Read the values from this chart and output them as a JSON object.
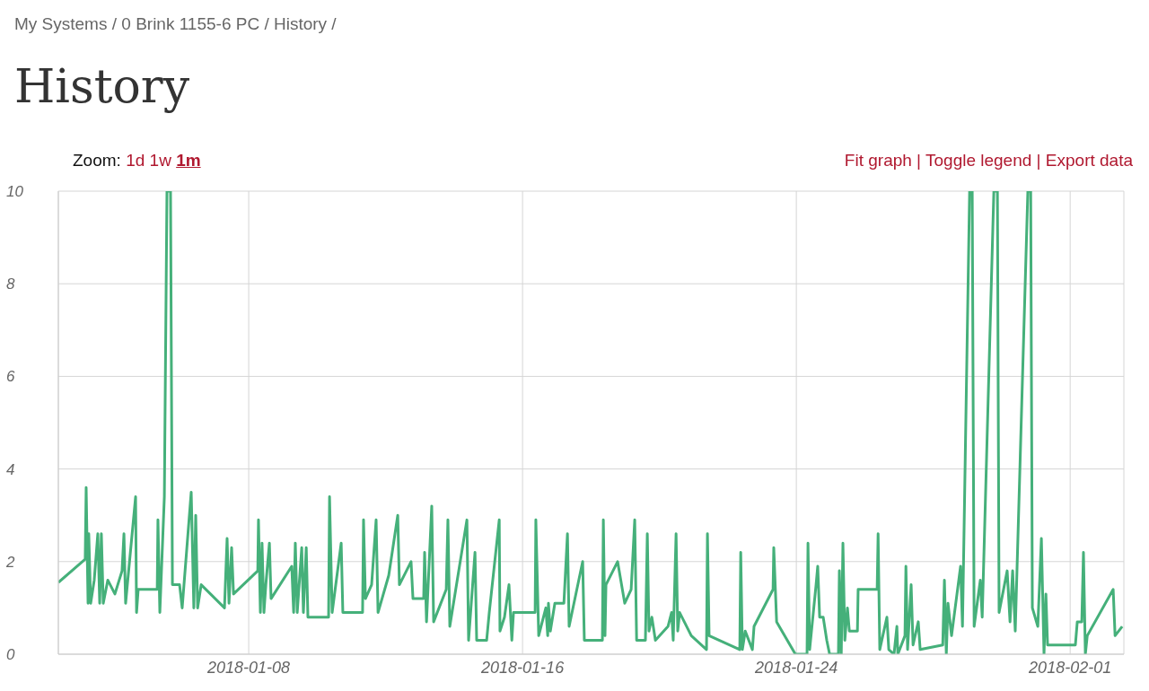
{
  "chart_data": {
    "type": "line",
    "title": "History",
    "annotations": [
      "My Systems / 0 Brink 1155-6 PC / History /",
      "Zoom:",
      "1d",
      "1w",
      "1m",
      "Fit graph |",
      "Toggle legend |",
      "Export data"
    ],
    "xlim": [
      "2018-01-02T10:30",
      "2018-02-02T13:40"
    ],
    "xticks": [
      "2018-01-08",
      "2018-01-16",
      "2018-01-24",
      "2018-02-01"
    ],
    "ylim": [
      0,
      10
    ],
    "yticks": [
      0,
      2,
      4,
      6,
      8,
      10
    ],
    "grid": true,
    "marker": "none",
    "line_style": "solid",
    "x": [
      "2018-01-02T10:30",
      "2018-01-03T05:20",
      "2018-01-03T06:00",
      "2018-01-03T07:20",
      "2018-01-03T07:50",
      "2018-01-03T09:10",
      "2018-01-03T11:40",
      "2018-01-03T14:10",
      "2018-01-03T15:30",
      "2018-01-03T16:40",
      "2018-01-03T18:00",
      "2018-01-03T21:10",
      "2018-01-04T02:10",
      "2018-01-04T07:10",
      "2018-01-04T08:30",
      "2018-01-04T09:40",
      "2018-01-04T16:40",
      "2018-01-04T17:20",
      "2018-01-04T18:30",
      "2018-01-05T07:50",
      "2018-01-05T08:20",
      "2018-01-05T09:40",
      "2018-01-05T12:50",
      "2018-01-05T14:40",
      "2018-01-05T17:10",
      "2018-01-05T18:30",
      "2018-01-05T23:30",
      "2018-01-06T01:20",
      "2018-01-06T07:40",
      "2018-01-06T09:30",
      "2018-01-06T10:50",
      "2018-01-06T12:10",
      "2018-01-06T14:40",
      "2018-01-07T07:00",
      "2018-01-07T08:50",
      "2018-01-07T10:10",
      "2018-01-07T12:00",
      "2018-01-07T13:20",
      "2018-01-08T06:20",
      "2018-01-08T06:50",
      "2018-01-08T08:10",
      "2018-01-08T09:20",
      "2018-01-08T10:40",
      "2018-01-08T12:00",
      "2018-01-08T14:30",
      "2018-01-08T15:40",
      "2018-01-09T06:10",
      "2018-01-09T07:30",
      "2018-01-09T08:40",
      "2018-01-09T10:00",
      "2018-01-09T13:10",
      "2018-01-09T14:20",
      "2018-01-09T16:20",
      "2018-01-09T17:30",
      "2018-01-10T08:00",
      "2018-01-10T08:40",
      "2018-01-10T10:30",
      "2018-01-10T16:50",
      "2018-01-10T18:00",
      "2018-01-11T07:50",
      "2018-01-11T08:30",
      "2018-01-11T09:50",
      "2018-01-11T14:10",
      "2018-01-11T17:20",
      "2018-01-11T18:40",
      "2018-01-12T02:10",
      "2018-01-12T08:30",
      "2018-01-12T09:40",
      "2018-01-12T17:50",
      "2018-01-12T19:10",
      "2018-01-13T02:40",
      "2018-01-13T03:20",
      "2018-01-13T04:40",
      "2018-01-13T08:20",
      "2018-01-13T09:40",
      "2018-01-13T18:30",
      "2018-01-13T19:40",
      "2018-01-13T21:00",
      "2018-01-14T09:00",
      "2018-01-14T10:10",
      "2018-01-14T14:40",
      "2018-01-14T15:50",
      "2018-01-14T22:50",
      "2018-01-15T00:40",
      "2018-01-15T07:40",
      "2018-01-15T08:10",
      "2018-01-15T11:20",
      "2018-01-15T14:30",
      "2018-01-15T16:30",
      "2018-01-15T17:40",
      "2018-01-16T08:50",
      "2018-01-16T09:20",
      "2018-01-16T11:20",
      "2018-01-16T16:20",
      "2018-01-16T17:40",
      "2018-01-16T18:10",
      "2018-01-16T19:30",
      "2018-01-16T22:40",
      "2018-01-17T05:00",
      "2018-01-17T07:30",
      "2018-01-17T08:40",
      "2018-01-17T18:10",
      "2018-01-17T19:20",
      "2018-01-18T08:00",
      "2018-01-18T08:40",
      "2018-01-18T09:50",
      "2018-01-18T10:30",
      "2018-01-18T18:40",
      "2018-01-18T23:40",
      "2018-01-19T04:10",
      "2018-01-19T06:40",
      "2018-01-19T08:00",
      "2018-01-19T14:10",
      "2018-01-19T15:30",
      "2018-01-19T16:40",
      "2018-01-19T18:40",
      "2018-01-19T21:10",
      "2018-01-20T06:00",
      "2018-01-20T08:30",
      "2018-01-20T09:40",
      "2018-01-20T11:40",
      "2018-01-20T12:50",
      "2018-01-20T14:10",
      "2018-01-20T22:20",
      "2018-01-21T09:00",
      "2018-01-21T09:40",
      "2018-01-21T10:50",
      "2018-01-22T08:20",
      "2018-01-22T09:00",
      "2018-01-22T10:10",
      "2018-01-22T12:10",
      "2018-01-22T17:10",
      "2018-01-22T18:20",
      "2018-01-23T07:40",
      "2018-01-23T08:10",
      "2018-01-23T10:10",
      "2018-01-23T23:20",
      "2018-01-24T07:30",
      "2018-01-24T08:10",
      "2018-01-24T09:20",
      "2018-01-24T13:50",
      "2018-01-24T15:00",
      "2018-01-24T16:20",
      "2018-01-24T18:50",
      "2018-01-24T21:20",
      "2018-01-24T23:20",
      "2018-01-25T05:30",
      "2018-01-25T06:10",
      "2018-01-25T07:30",
      "2018-01-25T08:40",
      "2018-01-25T10:00",
      "2018-01-25T11:50",
      "2018-01-25T13:10",
      "2018-01-25T18:50",
      "2018-01-25T19:20",
      "2018-01-26T08:40",
      "2018-01-26T09:20",
      "2018-01-26T10:30",
      "2018-01-26T15:30",
      "2018-01-26T16:50",
      "2018-01-26T20:30",
      "2018-01-26T22:30",
      "2018-01-26T23:10",
      "2018-01-27T04:10",
      "2018-01-27T04:50",
      "2018-01-27T06:00",
      "2018-01-27T08:30",
      "2018-01-27T09:50",
      "2018-01-27T13:30",
      "2018-01-27T14:50",
      "2018-01-28T06:40",
      "2018-01-28T07:50",
      "2018-01-28T09:10",
      "2018-01-28T10:20",
      "2018-01-28T12:50",
      "2018-01-28T19:10",
      "2018-01-28T20:30",
      "2018-01-29T01:30",
      "2018-01-29T03:20",
      "2018-01-29T04:40",
      "2018-01-29T09:00",
      "2018-01-29T10:20",
      "2018-01-29T18:30",
      "2018-01-29T21:00",
      "2018-01-29T22:10",
      "2018-01-30T03:50",
      "2018-01-30T05:50",
      "2018-01-30T07:40",
      "2018-01-30T09:30",
      "2018-01-30T18:20",
      "2018-01-30T20:20",
      "2018-01-30T21:30",
      "2018-01-31T01:20",
      "2018-01-31T03:50",
      "2018-01-31T05:40",
      "2018-01-31T07:00",
      "2018-01-31T08:10",
      "2018-02-01T03:40",
      "2018-02-01T05:00",
      "2018-02-01T08:10",
      "2018-02-01T09:20",
      "2018-02-01T10:40",
      "2018-02-01T12:00",
      "2018-02-02T06:10",
      "2018-02-02T07:30",
      "2018-02-02T12:30"
    ],
    "series": [
      {
        "color": "#45b07a",
        "values": [
          1.55,
          2.05,
          3.6,
          1.1,
          2.6,
          1.1,
          1.6,
          2.6,
          1.1,
          2.6,
          1.1,
          1.6,
          1.3,
          1.8,
          2.6,
          1.1,
          3.4,
          0.9,
          1.4,
          1.4,
          2.9,
          0.9,
          3.4,
          10,
          10,
          1.5,
          1.5,
          1.0,
          3.5,
          1.0,
          3.0,
          1.0,
          1.5,
          1.0,
          2.5,
          1.1,
          2.3,
          1.3,
          1.8,
          2.9,
          0.9,
          2.4,
          0.9,
          1.5,
          2.4,
          1.2,
          1.9,
          0.9,
          2.4,
          0.9,
          2.3,
          0.9,
          2.3,
          0.8,
          0.8,
          3.4,
          0.9,
          2.4,
          0.9,
          0.9,
          2.9,
          1.2,
          1.5,
          2.9,
          0.9,
          1.7,
          3.0,
          1.5,
          2.0,
          1.2,
          1.2,
          2.2,
          0.7,
          3.2,
          0.7,
          1.4,
          2.9,
          0.6,
          2.9,
          0.3,
          2.2,
          0.3,
          0.3,
          0.9,
          2.9,
          0.5,
          0.8,
          1.5,
          0.3,
          0.9,
          0.9,
          2.9,
          0.4,
          1.0,
          0.4,
          1.1,
          0.5,
          1.1,
          1.1,
          2.6,
          0.6,
          2.0,
          0.3,
          0.3,
          2.9,
          0.4,
          1.5,
          2.0,
          1.1,
          1.4,
          2.9,
          0.3,
          0.3,
          2.6,
          0.5,
          0.8,
          0.3,
          0.6,
          0.9,
          0.3,
          2.6,
          0.5,
          0.9,
          0.4,
          0.1,
          2.6,
          0.4,
          0.1,
          2.2,
          0.1,
          0.5,
          0.1,
          0.6,
          1.4,
          2.3,
          0.7,
          0.0,
          0.0,
          2.4,
          0.1,
          1.5,
          1.9,
          0.8,
          0.8,
          0.3,
          0.0,
          0.0,
          1.8,
          0.0,
          2.4,
          0.3,
          1.0,
          0.5,
          0.5,
          1.4,
          1.4,
          2.6,
          0.1,
          0.8,
          0.1,
          0.0,
          0.6,
          0.0,
          0.4,
          1.9,
          0.1,
          1.5,
          0.2,
          0.7,
          0.1,
          0.2,
          1.6,
          0.0,
          1.1,
          0.4,
          1.9,
          0.6,
          10,
          10,
          0.6,
          1.6,
          0.8,
          10,
          10,
          0.9,
          1.8,
          0.7,
          1.8,
          0.5,
          10,
          10,
          1.0,
          0.6,
          2.5,
          0.0,
          1.3,
          0.2,
          0.2,
          0.7,
          0.7,
          2.2,
          0.0,
          0.4,
          1.4,
          0.4,
          0.6
        ]
      }
    ]
  }
}
